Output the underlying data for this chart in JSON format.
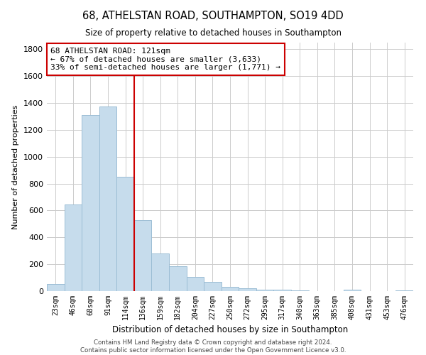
{
  "title": "68, ATHELSTAN ROAD, SOUTHAMPTON, SO19 4DD",
  "subtitle": "Size of property relative to detached houses in Southampton",
  "xlabel": "Distribution of detached houses by size in Southampton",
  "ylabel": "Number of detached properties",
  "bar_labels": [
    "23sqm",
    "46sqm",
    "68sqm",
    "91sqm",
    "114sqm",
    "136sqm",
    "159sqm",
    "182sqm",
    "204sqm",
    "227sqm",
    "250sqm",
    "272sqm",
    "295sqm",
    "317sqm",
    "340sqm",
    "363sqm",
    "385sqm",
    "408sqm",
    "431sqm",
    "453sqm",
    "476sqm"
  ],
  "bar_values": [
    55,
    645,
    1310,
    1375,
    850,
    530,
    280,
    183,
    105,
    68,
    30,
    22,
    10,
    12,
    3,
    0,
    0,
    8,
    0,
    0,
    3
  ],
  "bar_color": "#c6dcec",
  "bar_edge_color": "#9bbdd4",
  "vline_color": "#cc0000",
  "annotation_title": "68 ATHELSTAN ROAD: 121sqm",
  "annotation_line1": "← 67% of detached houses are smaller (3,633)",
  "annotation_line2": "33% of semi-detached houses are larger (1,771) →",
  "annotation_box_color": "#ffffff",
  "annotation_box_edge": "#cc0000",
  "ylim": [
    0,
    1850
  ],
  "yticks": [
    0,
    200,
    400,
    600,
    800,
    1000,
    1200,
    1400,
    1600,
    1800
  ],
  "footer_line1": "Contains HM Land Registry data © Crown copyright and database right 2024.",
  "footer_line2": "Contains public sector information licensed under the Open Government Licence v3.0."
}
